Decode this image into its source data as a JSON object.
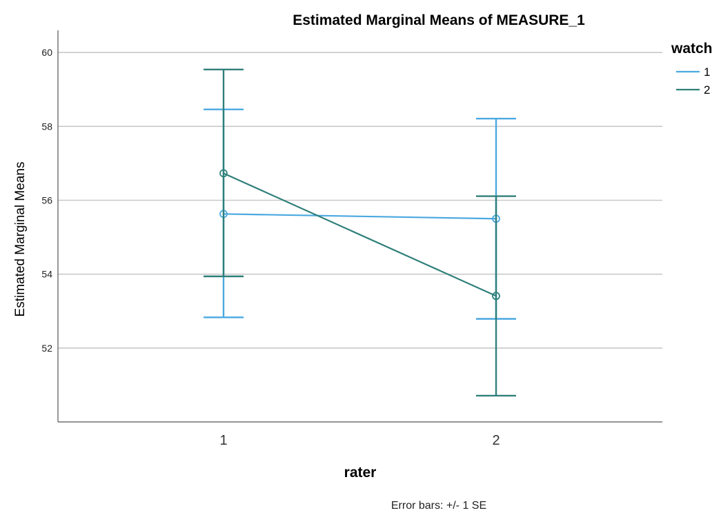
{
  "chart_data": {
    "type": "line",
    "title": "Estimated Marginal Means of MEASURE_1",
    "xlabel": "rater",
    "ylabel": "Estimated Marginal Means",
    "categories": [
      "1",
      "2"
    ],
    "ylim": [
      50.0,
      60.6
    ],
    "yticks": [
      "52",
      "54",
      "56",
      "58",
      "60"
    ],
    "grid": "horizontal",
    "legend": {
      "title": "watch",
      "position": "top-right"
    },
    "error_bar_note": "Error bars: +/- 1 SE",
    "series": [
      {
        "name": "1",
        "color": "#4aa8e0",
        "values": [
          55.63,
          55.5
        ],
        "lower": [
          52.83,
          52.79
        ],
        "upper": [
          58.46,
          58.21
        ]
      },
      {
        "name": "2",
        "color": "#2f7f7a",
        "values": [
          56.73,
          53.41
        ],
        "lower": [
          53.94,
          50.71
        ],
        "upper": [
          59.54,
          56.11
        ]
      }
    ]
  }
}
